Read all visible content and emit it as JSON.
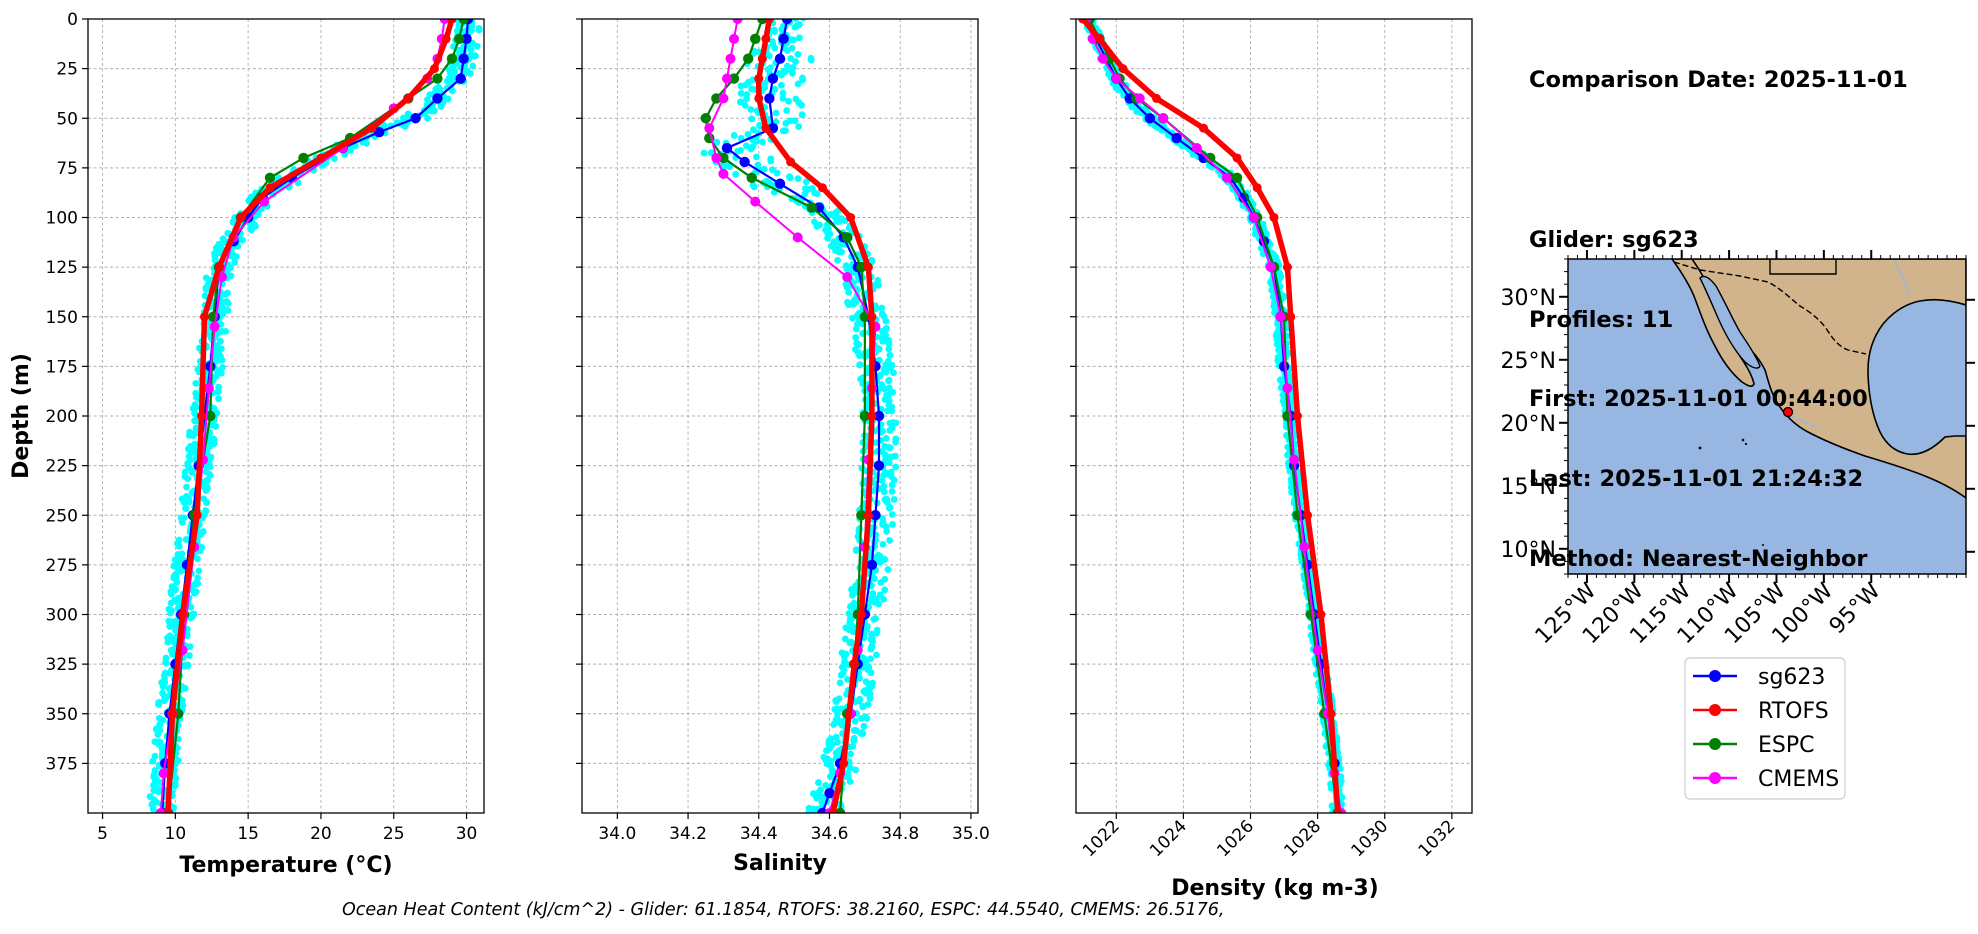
{
  "info": {
    "comparison_date": "Comparison Date: 2025-11-01",
    "glider": "Glider: sg623",
    "profiles": "Profiles: 11",
    "first": "First: 2025-11-01 00:44:00",
    "last": "Last: 2025-11-01 21:24:32",
    "method": "Method: Nearest-Neighbor"
  },
  "caption": "Ocean Heat Content (kJ/cm^2) - Glider: 61.1854,  RTOFS: 38.2160,  ESPC: 44.5540,  CMEMS: 26.5176,",
  "colors": {
    "sg623": "#0000ff",
    "RTOFS": "#ff0000",
    "ESPC": "#008000",
    "CMEMS": "#ff00ff",
    "glider_raw": "#00ffff",
    "ocean": "#97b6e1",
    "land": "#d2b48c"
  },
  "legend": [
    "sg623",
    "RTOFS",
    "ESPC",
    "CMEMS"
  ],
  "map": {
    "lon_ticks": [
      "125°W",
      "120°W",
      "115°W",
      "110°W",
      "105°W",
      "100°W",
      "95°W"
    ],
    "lat_ticks": [
      "30°N",
      "25°N",
      "20°N",
      "15°N",
      "10°N"
    ],
    "marker": {
      "lon": -106.8,
      "lat": 21.3
    }
  },
  "chart_data": [
    {
      "type": "line",
      "xlabel": "Temperature (°C)",
      "ylabel": "Depth (m)",
      "xlim": [
        4,
        31.2
      ],
      "ylim": [
        400,
        0
      ],
      "xticks": [
        5,
        10,
        15,
        20,
        25,
        30
      ],
      "yticks": [
        0,
        25,
        50,
        75,
        100,
        125,
        150,
        175,
        200,
        225,
        250,
        275,
        300,
        325,
        350,
        375
      ],
      "grid": true,
      "series": [
        {
          "name": "sg623",
          "x": [
            30.1,
            30.0,
            29.8,
            29.6,
            28.0,
            26.5,
            24.0,
            21.5,
            18.0,
            16.0,
            15.0,
            14.0,
            13.0,
            12.7,
            12.4,
            12.0,
            11.6,
            11.2,
            10.8,
            10.4,
            10.0,
            9.6,
            9.3,
            9.1
          ],
          "y": [
            0,
            10,
            20,
            30,
            40,
            50,
            57,
            65,
            80,
            90,
            100,
            112,
            125,
            150,
            175,
            200,
            225,
            250,
            275,
            300,
            325,
            350,
            375,
            400
          ]
        },
        {
          "name": "RTOFS",
          "x": [
            29.0,
            28.6,
            27.8,
            26.0,
            23.5,
            20.0,
            16.5,
            14.5,
            13.0,
            12.0,
            11.8,
            11.5,
            10.5,
            9.8,
            9.5
          ],
          "y": [
            0,
            10,
            25,
            40,
            55,
            70,
            85,
            100,
            125,
            150,
            200,
            250,
            300,
            350,
            400
          ]
        },
        {
          "name": "ESPC",
          "x": [
            29.8,
            29.5,
            29.0,
            28.0,
            26.0,
            22.0,
            18.8,
            16.5,
            14.5,
            13.0,
            12.6,
            12.4,
            11.3,
            10.6,
            10.2,
            9.5
          ],
          "y": [
            0,
            10,
            20,
            30,
            40,
            60,
            70,
            80,
            100,
            125,
            150,
            200,
            250,
            300,
            350,
            400
          ]
        },
        {
          "name": "CMEMS",
          "x": [
            28.5,
            28.3,
            28.0,
            27.3,
            25.0,
            21.5,
            16.1,
            14.0,
            13.2,
            12.7,
            12.3,
            11.9,
            11.3,
            10.5,
            9.8,
            9.2,
            9.0
          ],
          "y": [
            0,
            10,
            20,
            30,
            45,
            65,
            92,
            110,
            130,
            155,
            186,
            222,
            266,
            318,
            350,
            380,
            400
          ]
        }
      ]
    },
    {
      "type": "line",
      "xlabel": "Salinity",
      "xlim": [
        33.9,
        35.02
      ],
      "ylim": [
        400,
        0
      ],
      "xticks": [
        "34.0",
        "34.2",
        "34.4",
        "34.6",
        "34.8",
        "35.0"
      ],
      "grid": true,
      "series": [
        {
          "name": "sg623",
          "x": [
            34.48,
            34.47,
            34.46,
            34.44,
            34.43,
            34.44,
            34.31,
            34.36,
            34.46,
            34.57,
            34.64,
            34.68,
            34.71,
            34.73,
            34.74,
            34.74,
            34.73,
            34.72,
            34.7,
            34.68,
            34.66,
            34.63,
            34.6,
            34.58
          ],
          "y": [
            0,
            10,
            20,
            30,
            40,
            55,
            65,
            72,
            83,
            95,
            110,
            125,
            150,
            175,
            200,
            225,
            250,
            275,
            300,
            325,
            350,
            375,
            390,
            400
          ]
        },
        {
          "name": "RTOFS",
          "x": [
            34.43,
            34.42,
            34.41,
            34.4,
            34.4,
            34.42,
            34.49,
            34.58,
            34.66,
            34.71,
            34.72,
            34.72,
            34.71,
            34.69,
            34.67,
            34.64,
            34.61
          ],
          "y": [
            0,
            10,
            20,
            30,
            40,
            55,
            72,
            85,
            100,
            125,
            150,
            200,
            250,
            300,
            325,
            375,
            400
          ]
        },
        {
          "name": "ESPC",
          "x": [
            34.41,
            34.39,
            34.37,
            34.33,
            34.28,
            34.25,
            34.26,
            34.3,
            34.38,
            34.55,
            34.65,
            34.69,
            34.7,
            34.7,
            34.69,
            34.68,
            34.67,
            34.65,
            34.63
          ],
          "y": [
            0,
            10,
            20,
            30,
            40,
            50,
            60,
            70,
            80,
            95,
            110,
            125,
            150,
            200,
            250,
            300,
            325,
            350,
            400
          ]
        },
        {
          "name": "CMEMS",
          "x": [
            34.34,
            34.33,
            34.32,
            34.31,
            34.3,
            34.26,
            34.28,
            34.3,
            34.39,
            34.51,
            34.65,
            34.73,
            34.72,
            34.71,
            34.7,
            34.68,
            34.66,
            34.63,
            34.6
          ],
          "y": [
            0,
            10,
            20,
            30,
            40,
            55,
            70,
            78,
            92,
            110,
            130,
            155,
            186,
            222,
            266,
            318,
            350,
            380,
            400
          ]
        }
      ]
    },
    {
      "type": "line",
      "xlabel": "Density (kg m-3)",
      "xlim": [
        1020.8,
        1032.6
      ],
      "ylim": [
        400,
        0
      ],
      "xticks": [
        "1022",
        "1024",
        "1026",
        "1028",
        "1030",
        "1032"
      ],
      "grid": true,
      "series": [
        {
          "name": "sg623",
          "x": [
            1021.2,
            1021.4,
            1021.7,
            1022.0,
            1022.4,
            1023.0,
            1023.8,
            1024.6,
            1025.4,
            1025.8,
            1026.1,
            1026.4,
            1026.7,
            1026.9,
            1027.0,
            1027.2,
            1027.3,
            1027.5,
            1027.7,
            1027.9,
            1028.1,
            1028.3,
            1028.5,
            1028.6
          ],
          "y": [
            0,
            10,
            20,
            30,
            40,
            50,
            60,
            70,
            80,
            90,
            100,
            112,
            125,
            150,
            175,
            200,
            225,
            250,
            275,
            300,
            325,
            350,
            375,
            400
          ]
        },
        {
          "name": "RTOFS",
          "x": [
            1021.0,
            1021.5,
            1022.2,
            1023.2,
            1024.6,
            1025.6,
            1026.2,
            1026.7,
            1027.1,
            1027.2,
            1027.4,
            1027.7,
            1028.1,
            1028.4,
            1028.6
          ],
          "y": [
            0,
            10,
            25,
            40,
            55,
            70,
            85,
            100,
            125,
            150,
            200,
            250,
            300,
            350,
            400
          ]
        },
        {
          "name": "ESPC",
          "x": [
            1021.2,
            1021.5,
            1021.8,
            1022.1,
            1022.6,
            1023.4,
            1024.8,
            1025.6,
            1026.2,
            1026.7,
            1027.0,
            1027.1,
            1027.4,
            1027.8,
            1028.2,
            1028.6
          ],
          "y": [
            0,
            10,
            20,
            30,
            40,
            50,
            70,
            80,
            100,
            125,
            150,
            200,
            250,
            300,
            350,
            400
          ]
        },
        {
          "name": "CMEMS",
          "x": [
            1021.1,
            1021.3,
            1021.6,
            1022.0,
            1022.7,
            1023.4,
            1024.4,
            1025.3,
            1026.1,
            1026.6,
            1026.9,
            1027.1,
            1027.3,
            1027.6,
            1028.0,
            1028.3,
            1028.5,
            1028.7
          ],
          "y": [
            0,
            10,
            20,
            30,
            40,
            50,
            65,
            80,
            100,
            125,
            150,
            186,
            222,
            266,
            318,
            350,
            380,
            400
          ]
        }
      ]
    }
  ]
}
